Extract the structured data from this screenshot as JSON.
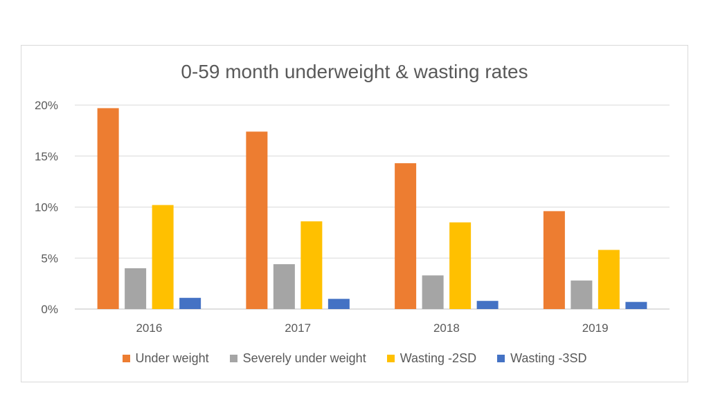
{
  "chart_data": {
    "type": "bar",
    "title": "0-59 month underweight & wasting rates",
    "categories": [
      "2016",
      "2017",
      "2018",
      "2019"
    ],
    "series": [
      {
        "name": "Under weight",
        "color": "#ED7D31",
        "values": [
          19.7,
          17.4,
          14.3,
          9.6
        ]
      },
      {
        "name": "Severely under weight",
        "color": "#A5A5A5",
        "values": [
          4.0,
          4.4,
          3.3,
          2.8
        ]
      },
      {
        "name": "Wasting -2SD",
        "color": "#FFC000",
        "values": [
          10.2,
          8.6,
          8.5,
          5.8
        ]
      },
      {
        "name": "Wasting -3SD",
        "color": "#4472C4",
        "values": [
          1.1,
          1.0,
          0.8,
          0.7
        ]
      }
    ],
    "ylim": [
      0,
      20
    ],
    "yticks": [
      "0%",
      "5%",
      "10%",
      "15%",
      "20%"
    ],
    "ytick_values": [
      0,
      5,
      10,
      15,
      20
    ],
    "grid": true,
    "legend_position": "bottom"
  }
}
